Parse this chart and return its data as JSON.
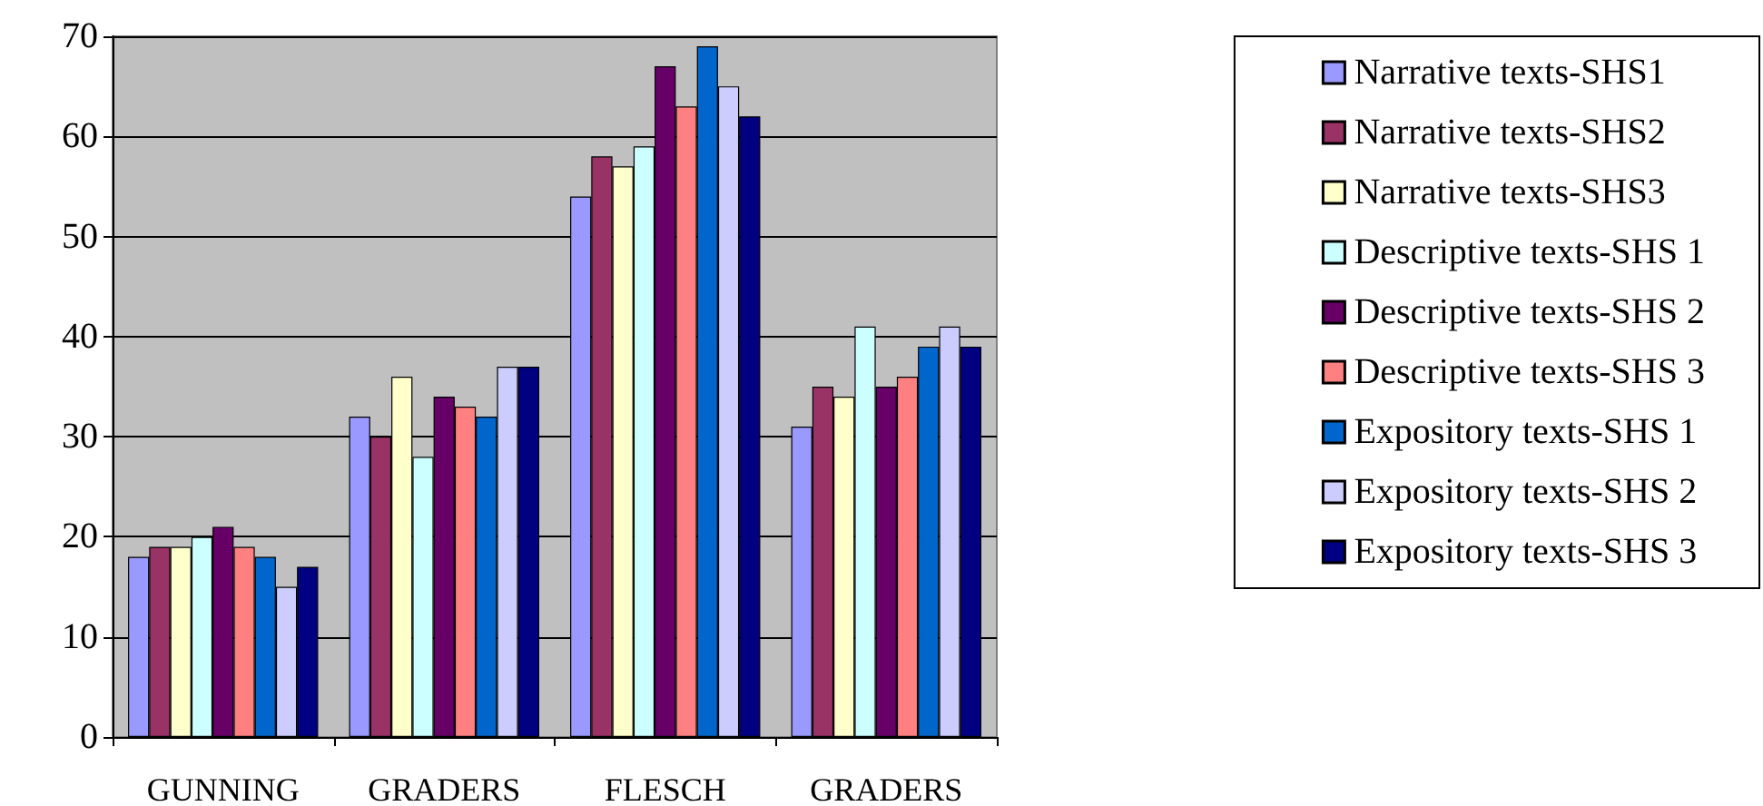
{
  "chart_data": {
    "type": "bar",
    "categories": [
      "GUNNING",
      "GRADERS",
      "FLESCH",
      "GRADERS"
    ],
    "series": [
      {
        "name": "Narrative texts-SHS1",
        "color": "#9999ff",
        "values": [
          18,
          32,
          54,
          31
        ]
      },
      {
        "name": "Narrative texts-SHS2",
        "color": "#993366",
        "values": [
          19,
          30,
          58,
          35
        ]
      },
      {
        "name": "Narrative texts-SHS3",
        "color": "#ffffcc",
        "values": [
          19,
          36,
          57,
          34
        ]
      },
      {
        "name": "Descriptive texts-SHS 1",
        "color": "#ccffff",
        "values": [
          20,
          28,
          59,
          41
        ]
      },
      {
        "name": "Descriptive texts-SHS 2",
        "color": "#660066",
        "values": [
          21,
          34,
          67,
          35
        ]
      },
      {
        "name": "Descriptive texts-SHS 3",
        "color": "#ff8080",
        "values": [
          19,
          33,
          63,
          36
        ]
      },
      {
        "name": "Expository texts-SHS 1",
        "color": "#0066cc",
        "values": [
          18,
          32,
          69,
          39
        ]
      },
      {
        "name": "Expository texts-SHS 2",
        "color": "#ccccff",
        "values": [
          15,
          37,
          65,
          41
        ]
      },
      {
        "name": "Expository texts-SHS 3",
        "color": "#000080",
        "values": [
          17,
          37,
          62,
          39
        ]
      }
    ],
    "ylim": [
      0,
      70
    ],
    "yticks": [
      0,
      10,
      20,
      30,
      40,
      50,
      60,
      70
    ],
    "grid": "y",
    "legend": "right"
  }
}
